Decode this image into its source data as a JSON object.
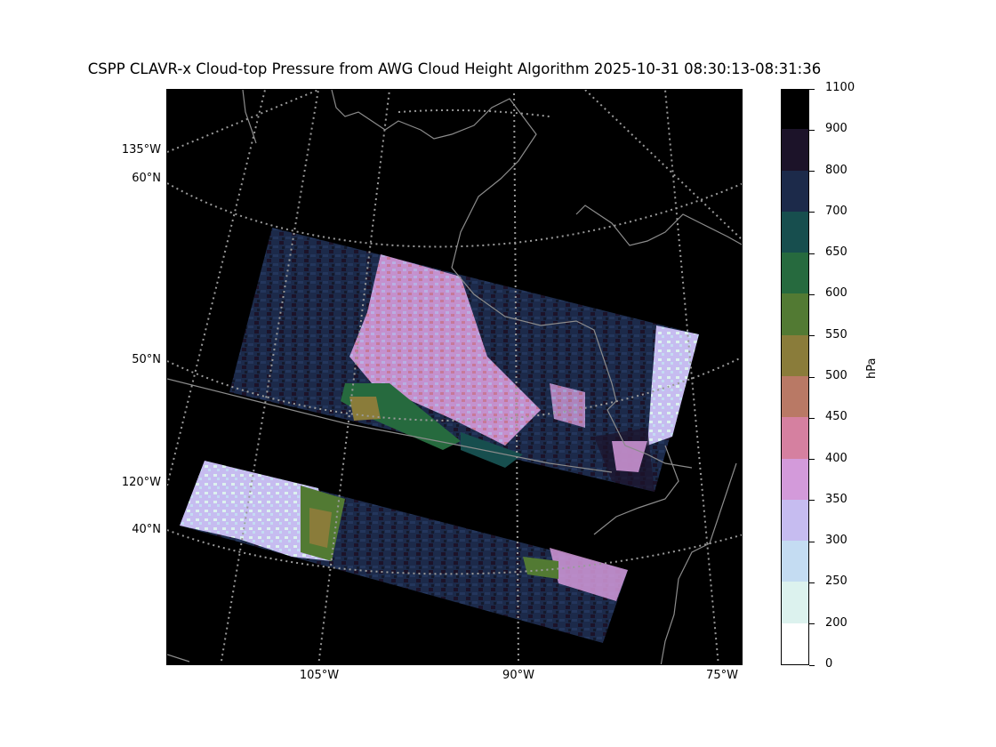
{
  "title": "CSPP CLAVR-x Cloud-top Pressure from AWG Cloud Height Algorithm 2025-10-31 08:30:13-08:31:36",
  "map": {
    "lat_labels": [
      "60°N",
      "50°N",
      "40°N"
    ],
    "lon_labels_left": [
      "135°W",
      "120°W"
    ],
    "lon_labels_bottom": [
      "105°W",
      "90°W",
      "75°W"
    ],
    "background": "#000000",
    "gridline_color": "#9a9a9a",
    "coastline_color": "#8c8c8c"
  },
  "colorbar": {
    "unit": "hPa",
    "tick_labels": [
      "0",
      "200",
      "250",
      "300",
      "350",
      "400",
      "450",
      "500",
      "550",
      "600",
      "650",
      "700",
      "800",
      "900",
      "1100"
    ],
    "bands": [
      {
        "from": 0,
        "to": 200,
        "color": "#ffffff"
      },
      {
        "from": 200,
        "to": 250,
        "color": "#dcf2ee"
      },
      {
        "from": 250,
        "to": 300,
        "color": "#c4dcf2"
      },
      {
        "from": 300,
        "to": 350,
        "color": "#c6bcf0"
      },
      {
        "from": 350,
        "to": 400,
        "color": "#d39ada"
      },
      {
        "from": 400,
        "to": 450,
        "color": "#d580a0"
      },
      {
        "from": 450,
        "to": 500,
        "color": "#b97965"
      },
      {
        "from": 500,
        "to": 550,
        "color": "#8a7c3a"
      },
      {
        "from": 550,
        "to": 600,
        "color": "#527a33"
      },
      {
        "from": 600,
        "to": 650,
        "color": "#266a3e"
      },
      {
        "from": 650,
        "to": 700,
        "color": "#174e4e"
      },
      {
        "from": 700,
        "to": 800,
        "color": "#1c2a4a"
      },
      {
        "from": 800,
        "to": 900,
        "color": "#1c1329"
      },
      {
        "from": 900,
        "to": 1100,
        "color": "#000000"
      }
    ]
  }
}
